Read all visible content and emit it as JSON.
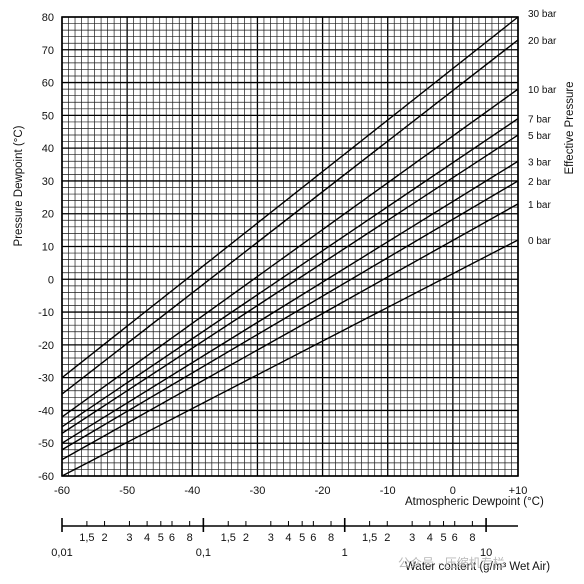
{
  "chart_data": {
    "type": "line",
    "title": "",
    "xlabel": "Atmospheric Dewpoint (°C)",
    "ylabel": "Pressure Dewpoint (°C)",
    "right_axis_label": "Effective Pressure",
    "secondary_xlabel": "Water content (g/m³ Wet Air)",
    "xlim": [
      -60,
      10
    ],
    "ylim": [
      -60,
      80
    ],
    "x_ticks": [
      "-60",
      "-50",
      "-40",
      "-30",
      "-20",
      "-10",
      "0",
      "+10"
    ],
    "y_ticks": [
      "80",
      "70",
      "60",
      "50",
      "40",
      "30",
      "20",
      "10",
      "0",
      "-10",
      "-20",
      "-30",
      "-40",
      "-50",
      "-60"
    ],
    "grid": true,
    "water_content_scale": {
      "decade_labels": [
        "0,01",
        "0,1",
        "1",
        "10"
      ],
      "minor_labels": [
        "1,5",
        "2",
        "3",
        "4",
        "5",
        "6",
        "8"
      ]
    },
    "series": [
      {
        "name": "0 bar",
        "x": [
          -60,
          10
        ],
        "y": [
          -60,
          12
        ]
      },
      {
        "name": "1 bar",
        "x": [
          -60,
          10
        ],
        "y": [
          -55,
          23
        ]
      },
      {
        "name": "2 bar",
        "x": [
          -60,
          10
        ],
        "y": [
          -52,
          30
        ]
      },
      {
        "name": "3 bar",
        "x": [
          -60,
          10
        ],
        "y": [
          -50,
          36
        ]
      },
      {
        "name": "5 bar",
        "x": [
          -60,
          10
        ],
        "y": [
          -47,
          44
        ]
      },
      {
        "name": "7 bar",
        "x": [
          -60,
          10
        ],
        "y": [
          -45,
          49
        ]
      },
      {
        "name": "10 bar",
        "x": [
          -60,
          10
        ],
        "y": [
          -42,
          58
        ]
      },
      {
        "name": "20 bar",
        "x": [
          -60,
          10
        ],
        "y": [
          -35,
          73
        ]
      },
      {
        "name": "30 bar",
        "x": [
          -60,
          10
        ],
        "y": [
          -30,
          80
        ]
      }
    ]
  },
  "watermark": "公众号 · 压缩机专栏"
}
